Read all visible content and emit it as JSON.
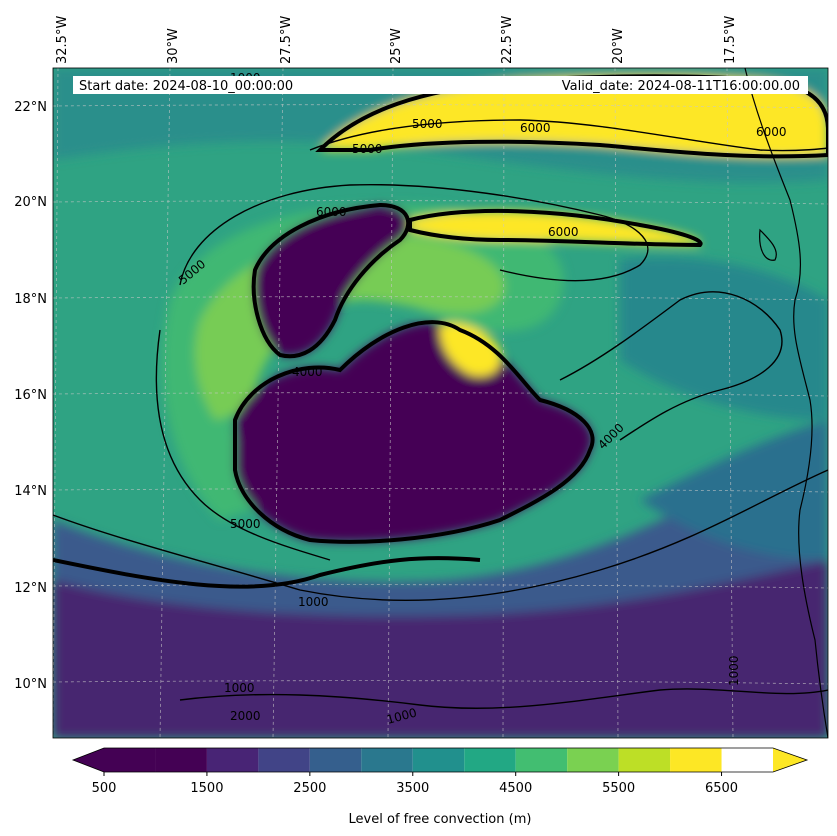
{
  "header": {
    "start_date": "Start date: 2024-08-10_00:00:00",
    "valid_date": "Valid_date: 2024-08-11T16:00:00.00"
  },
  "longitude_labels": [
    "32.5°W",
    "30°W",
    "27.5°W",
    "25°W",
    "22.5°W",
    "20°W",
    "17.5°W"
  ],
  "latitude_labels": [
    "22°N",
    "20°N",
    "18°N",
    "16°N",
    "14°N",
    "12°N",
    "10°N"
  ],
  "contour_labels": [
    "1000",
    "5000",
    "6000",
    "4000",
    "5000",
    "1000",
    "1000",
    "2000",
    "1000",
    "1000",
    "6000",
    "5000",
    "5000",
    "6000",
    "4000",
    "6000"
  ],
  "colorbar": {
    "label": "Level of free convection (m)",
    "tick_labels": [
      "500",
      "1500",
      "2500",
      "3500",
      "4500",
      "5500",
      "6500"
    ],
    "levels": [
      500,
      1000,
      1500,
      2000,
      2500,
      3000,
      3500,
      4000,
      4500,
      5000,
      5500,
      6000,
      6500,
      7000
    ],
    "colors": [
      "#440154",
      "#482475",
      "#414487",
      "#355f8d",
      "#2a788e",
      "#21908d",
      "#22a884",
      "#42be71",
      "#7ad151",
      "#bddf26",
      "#fde725"
    ],
    "under_color": "#440154",
    "over_color": "#fde725"
  },
  "colors": {
    "land_outline": "#000000",
    "contour": "#000000",
    "gridline": "#c8c8c8"
  }
}
